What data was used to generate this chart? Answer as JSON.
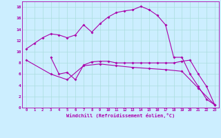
{
  "xlabel": "Windchill (Refroidissement éolien,°C)",
  "background_color": "#cceeff",
  "grid_color": "#aadddd",
  "line_color": "#aa00aa",
  "xlim": [
    -0.5,
    23.5
  ],
  "ylim": [
    0,
    19
  ],
  "xticks": [
    0,
    1,
    2,
    3,
    4,
    5,
    6,
    7,
    8,
    9,
    10,
    11,
    12,
    13,
    14,
    15,
    16,
    17,
    18,
    19,
    20,
    21,
    22,
    23
  ],
  "yticks": [
    0,
    2,
    4,
    6,
    8,
    10,
    12,
    14,
    16,
    18
  ],
  "line1_x": [
    0,
    1,
    2,
    3,
    4,
    5,
    6,
    7,
    8,
    9,
    10,
    11,
    12,
    13,
    14,
    15,
    16,
    17,
    18,
    19,
    20,
    21,
    22,
    23
  ],
  "line1_y": [
    10.5,
    11.5,
    12.5,
    13.2,
    13.0,
    12.5,
    13.0,
    14.8,
    13.5,
    15.0,
    16.2,
    17.0,
    17.3,
    17.5,
    18.1,
    17.5,
    16.5,
    14.8,
    9.0,
    9.0,
    6.0,
    3.8,
    1.5,
    0.5
  ],
  "line2_x": [
    3,
    4,
    5,
    6,
    7,
    8,
    9,
    10,
    11,
    12,
    13,
    14,
    15,
    16,
    17,
    18,
    19,
    20,
    21,
    22,
    23
  ],
  "line2_y": [
    9.0,
    6.0,
    6.3,
    5.0,
    7.6,
    8.2,
    8.3,
    8.3,
    8.0,
    8.0,
    8.0,
    8.0,
    8.0,
    8.0,
    8.0,
    8.0,
    8.3,
    8.5,
    6.0,
    3.8,
    0.5
  ],
  "line3_x": [
    0,
    3,
    5,
    7,
    9,
    11,
    13,
    15,
    17,
    19,
    21,
    23
  ],
  "line3_y": [
    8.5,
    6.0,
    5.0,
    7.5,
    7.8,
    7.5,
    7.2,
    7.0,
    6.8,
    6.5,
    3.5,
    0.5
  ]
}
